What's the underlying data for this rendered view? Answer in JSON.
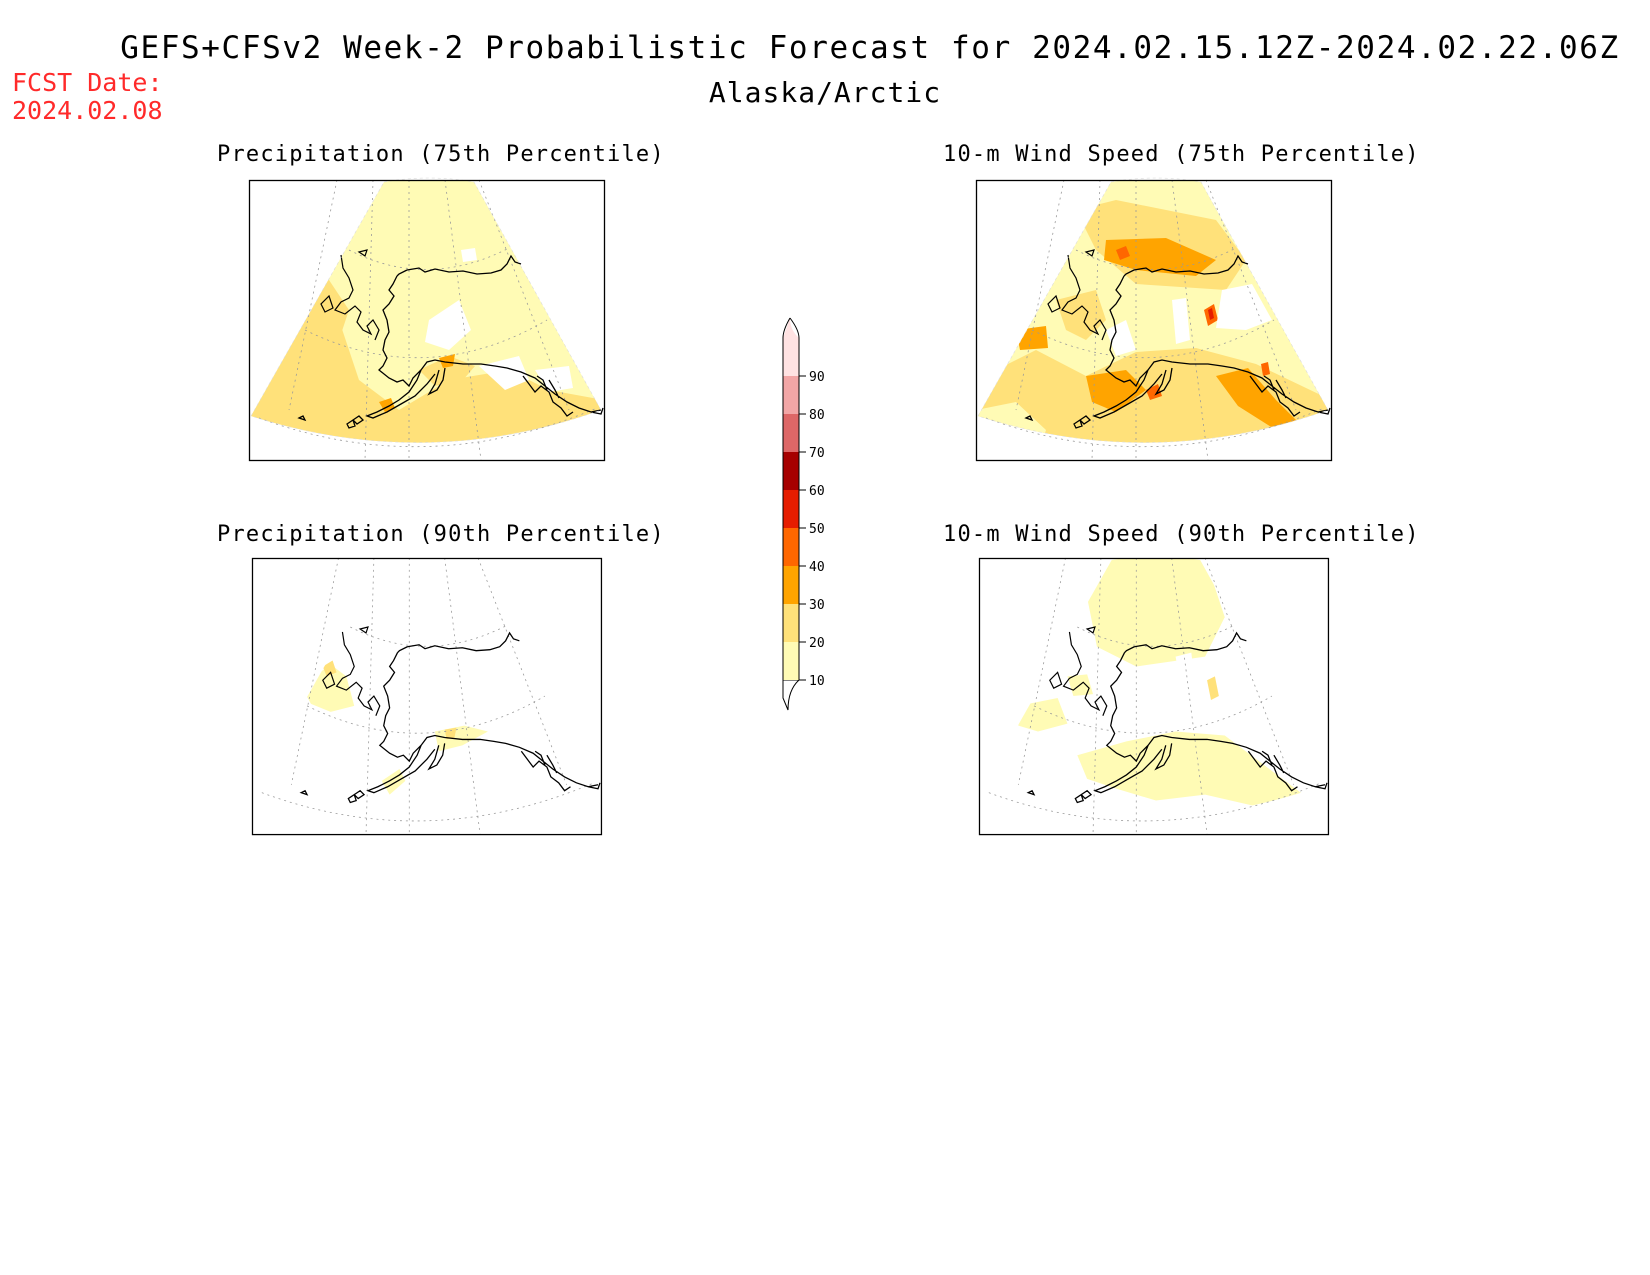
{
  "header": {
    "title": "GEFS+CFSv2 Week-2 Probabilistic Forecast for 2024.02.15.12Z-2024.02.22.06Z",
    "subtitle": "Alaska/Arctic",
    "fcst_label": "FCST Date:",
    "fcst_value": "2024.02.08"
  },
  "panels": [
    {
      "id": "precip-75",
      "title": "Precipitation (75th Percentile)",
      "coverage": "widespread 10-20 and 20-30, isolated 30-40"
    },
    {
      "id": "wind-75",
      "title": "10-m Wind Speed (75th Percentile)",
      "coverage": "widespread 10-30, several 30-50 areas"
    },
    {
      "id": "precip-90",
      "title": "Precipitation (90th Percentile)",
      "coverage": "isolated 10-20"
    },
    {
      "id": "wind-90",
      "title": "10-m Wind Speed (90th Percentile)",
      "coverage": "scattered 10-20"
    }
  ],
  "colorbar": {
    "labels": [
      "10",
      "20",
      "30",
      "40",
      "50",
      "60",
      "70",
      "80",
      "90"
    ],
    "colors": [
      "#fffbb5",
      "#ffe17a",
      "#ffa400",
      "#ff6700",
      "#e61d00",
      "#a60000",
      "#dd6767",
      "#f2a6a6",
      "#ffe2e2"
    ]
  }
}
